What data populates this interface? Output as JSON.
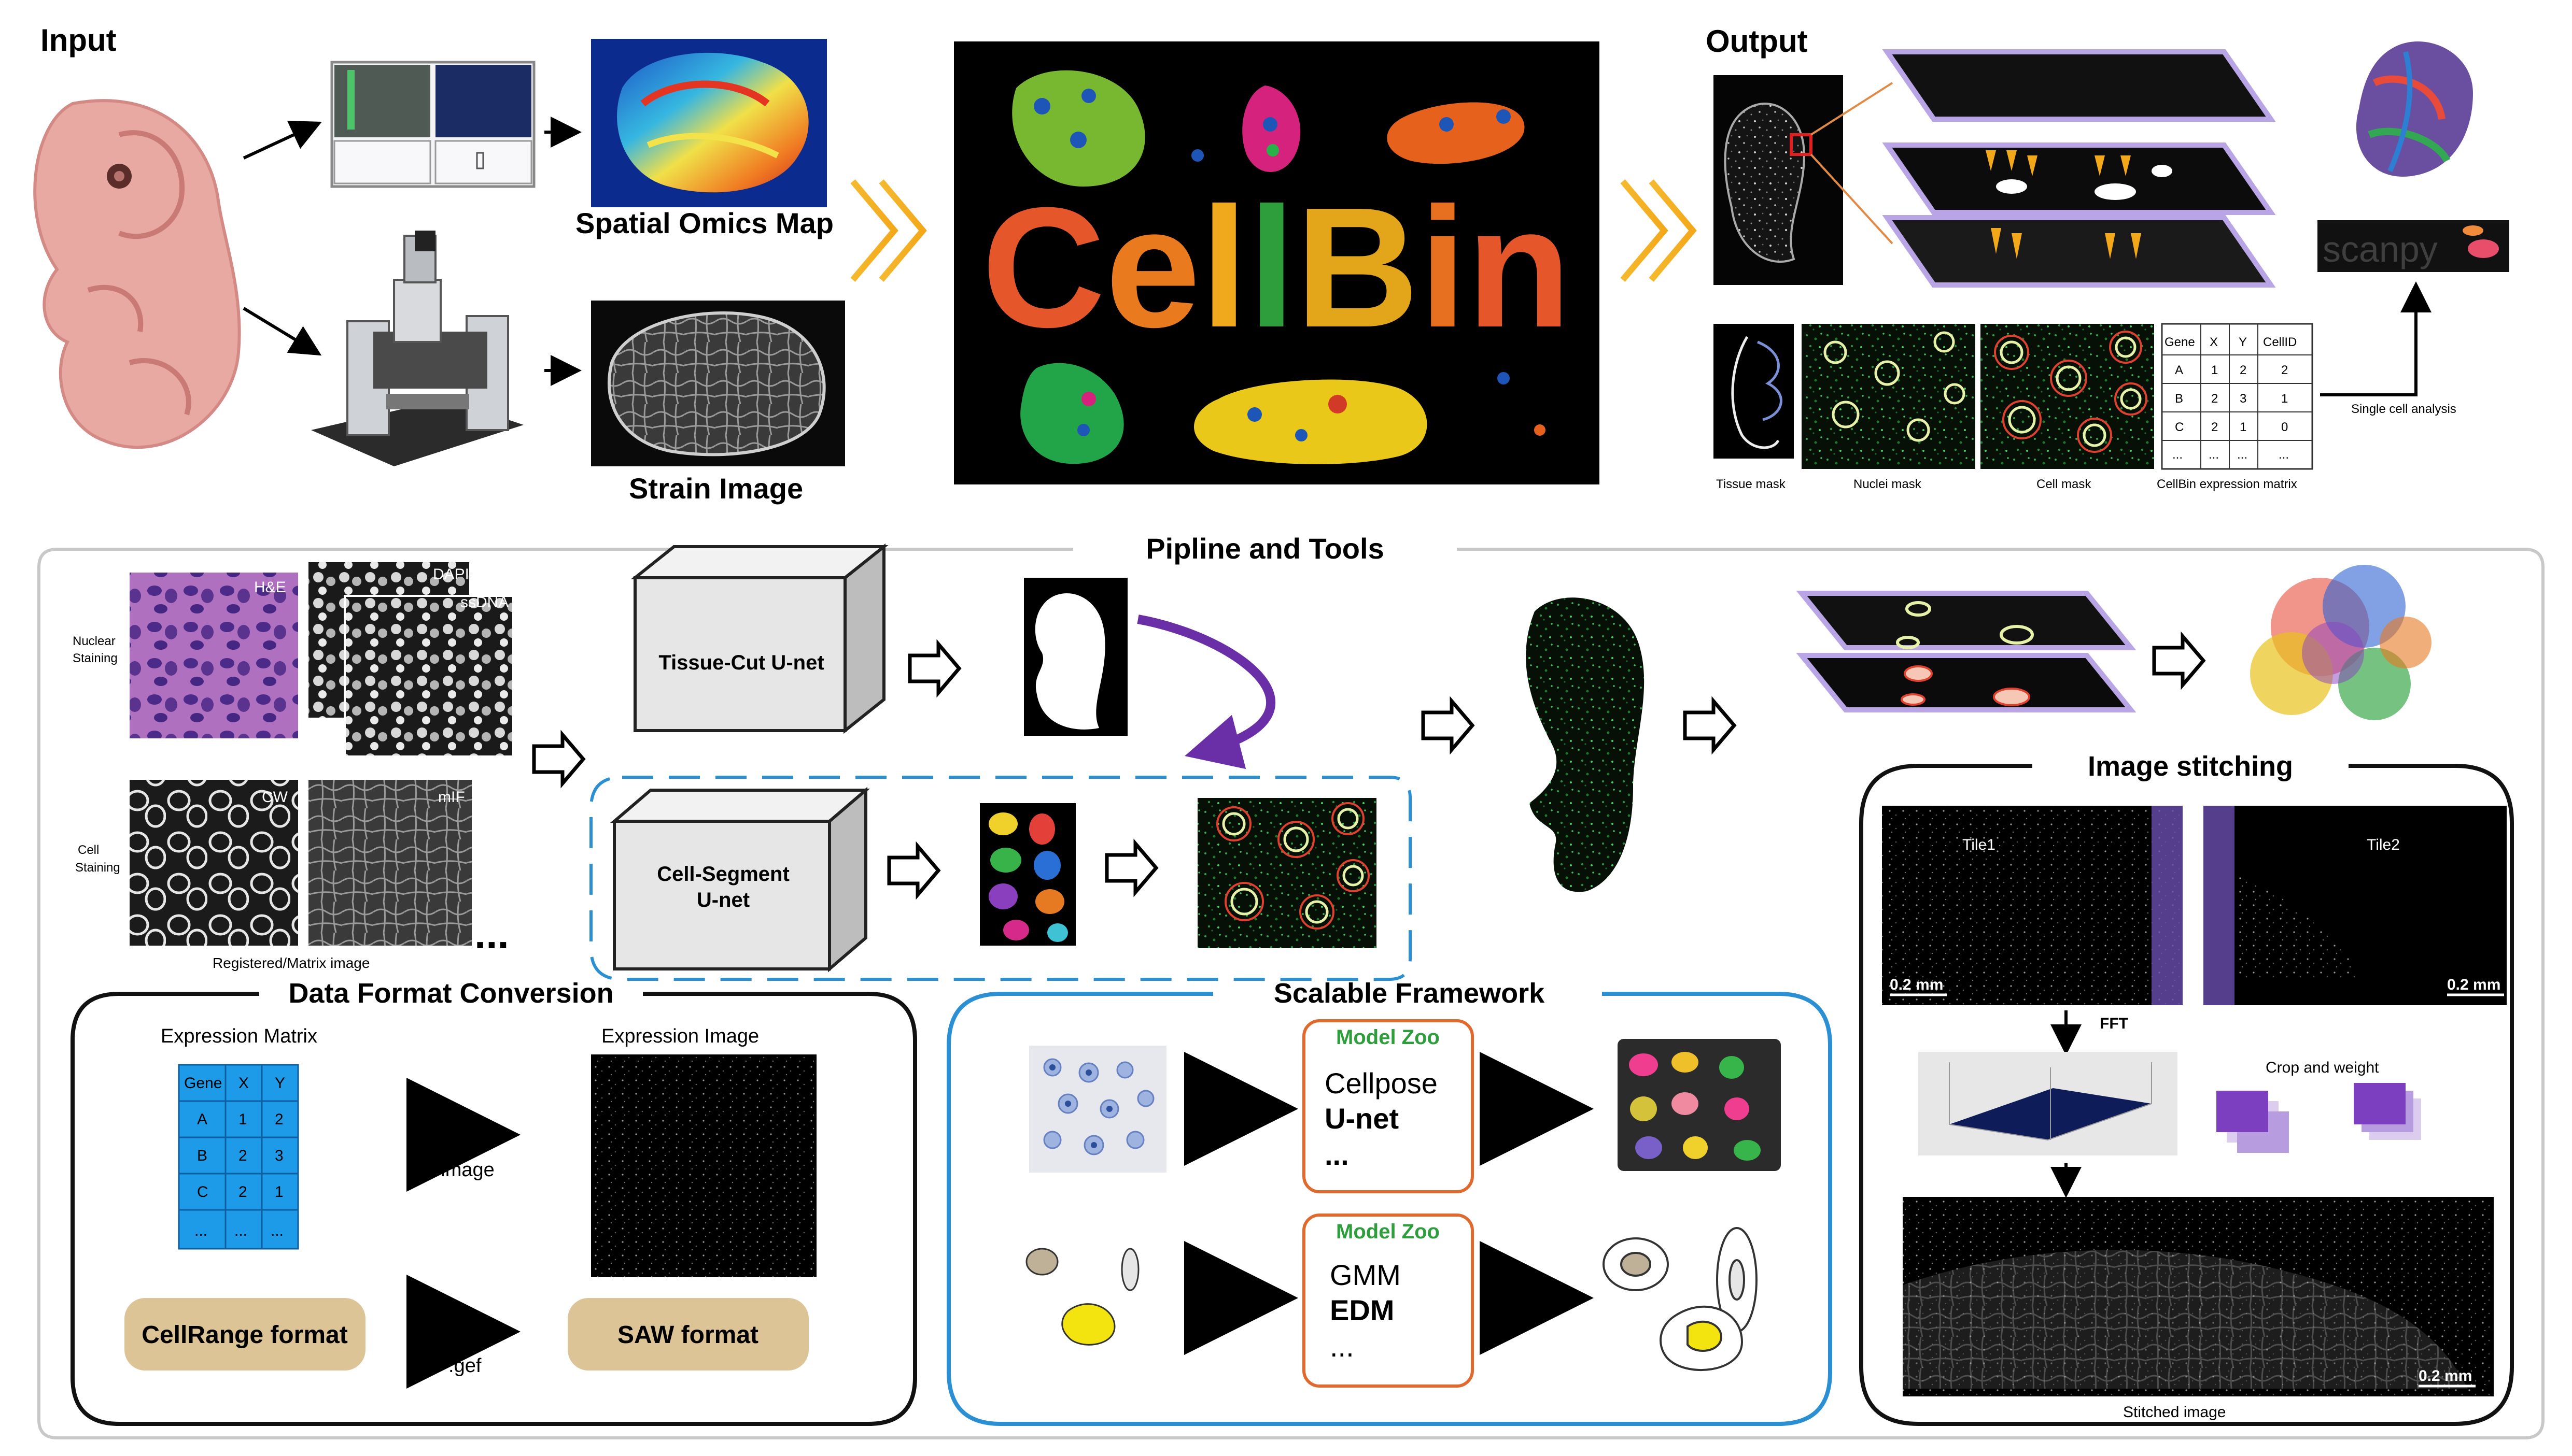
{
  "input": {
    "title": "Input",
    "spatial_map_label": "Spatial Omics Map",
    "strain_label": "Strain Image"
  },
  "center": {
    "logo_text": "CellBin",
    "logo_colors": [
      "#e5572a",
      "#e97a1d",
      "#f0a81c",
      "#2e9e3c",
      "#e3a51a",
      "#e6701f",
      "#e5572a"
    ]
  },
  "output": {
    "title": "Output",
    "tissue_mask": "Tissue mask",
    "nuclei_mask": "Nuclei mask",
    "cell_mask": "Cell mask",
    "matrix_caption": "CellBin expression matrix",
    "single_cell": "Single cell analysis",
    "scanpy": "scanpy",
    "matrix_header": [
      "Gene",
      "X",
      "Y",
      "CellID"
    ],
    "matrix_rows": [
      [
        "A",
        "1",
        "2",
        "2"
      ],
      [
        "B",
        "2",
        "3",
        "1"
      ],
      [
        "C",
        "2",
        "1",
        "0"
      ],
      [
        "...",
        "...",
        "...",
        "..."
      ]
    ]
  },
  "pipeline": {
    "title": "Pipline and Tools",
    "nuclear_staining": [
      "Nuclear",
      "Staining"
    ],
    "cell_staining": [
      "Cell",
      "Staining"
    ],
    "he_label": "H&E",
    "dapi_label": "DAPI",
    "ssdna_label": "ssDNA",
    "cw_label": "CW",
    "mif_label": "mIF",
    "registered_label": "Registered/Matrix image",
    "ellipsis": "...",
    "tissue_cut": "Tissue-Cut  U-net",
    "cell_segment_1": "Cell-Segment",
    "cell_segment_2": "U-net"
  },
  "data_format": {
    "title": "Data Format Conversion",
    "expr_matrix": "Expression Matrix",
    "expr_image": "Expression Image",
    "to_image": "to image",
    "to_gef": "to *.gef",
    "cellrange": "CellRange format",
    "saw": "SAW format",
    "table_header": [
      "Gene",
      "X",
      "Y"
    ],
    "table_rows": [
      [
        "A",
        "1",
        "2"
      ],
      [
        "B",
        "2",
        "3"
      ],
      [
        "C",
        "2",
        "1"
      ],
      [
        "...",
        "...",
        "..."
      ]
    ]
  },
  "scalable": {
    "title": "Scalable Framework",
    "zoo1_title": "Model Zoo",
    "zoo1_items": [
      "Cellpose",
      "U-net",
      "..."
    ],
    "zoo2_title": "Model Zoo",
    "zoo2_items": [
      "GMM",
      "EDM",
      "..."
    ]
  },
  "stitching": {
    "title": "Image stitching",
    "tile1": "Tile1",
    "tile2": "Tile2",
    "scale": "0.2 mm",
    "fft": "FFT",
    "crop": "Crop and weight",
    "stitched": "Stitched image"
  }
}
